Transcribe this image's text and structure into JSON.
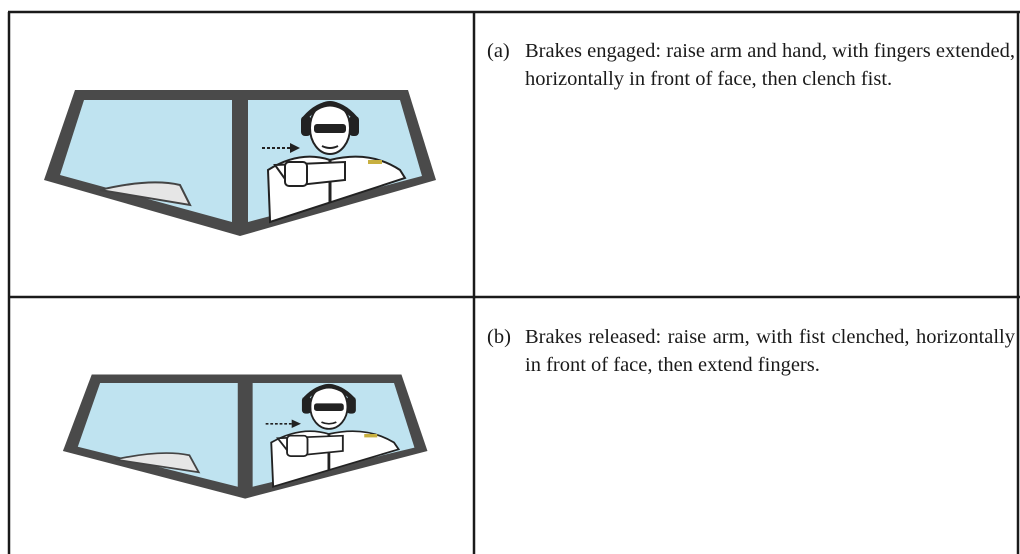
{
  "table": {
    "rows": [
      {
        "label": "(a)",
        "text": "Brakes engaged: raise arm and hand, with fingers extended, horizontally in front of face, then clench fist."
      },
      {
        "label": "(b)",
        "text": "Brakes released: raise arm, with fist clenched, horizontally in front of face, then extend fingers."
      }
    ]
  }
}
